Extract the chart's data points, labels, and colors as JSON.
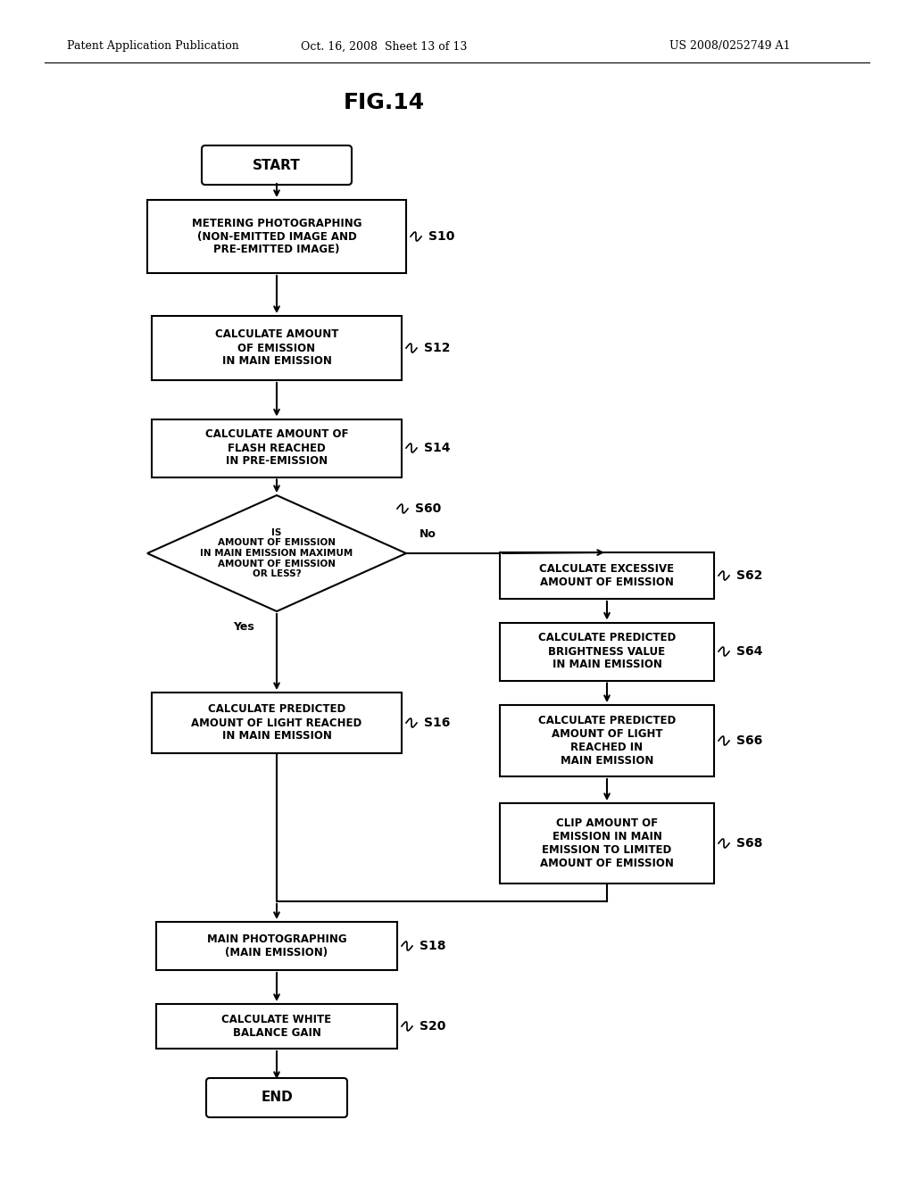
{
  "title": "FIG.14",
  "header_left": "Patent Application Publication",
  "header_center": "Oct. 16, 2008  Sheet 13 of 13",
  "header_right": "US 2008/0252749 A1",
  "bg_color": "#ffffff",
  "fig_w": 10.24,
  "fig_h": 13.2,
  "dpi": 100
}
